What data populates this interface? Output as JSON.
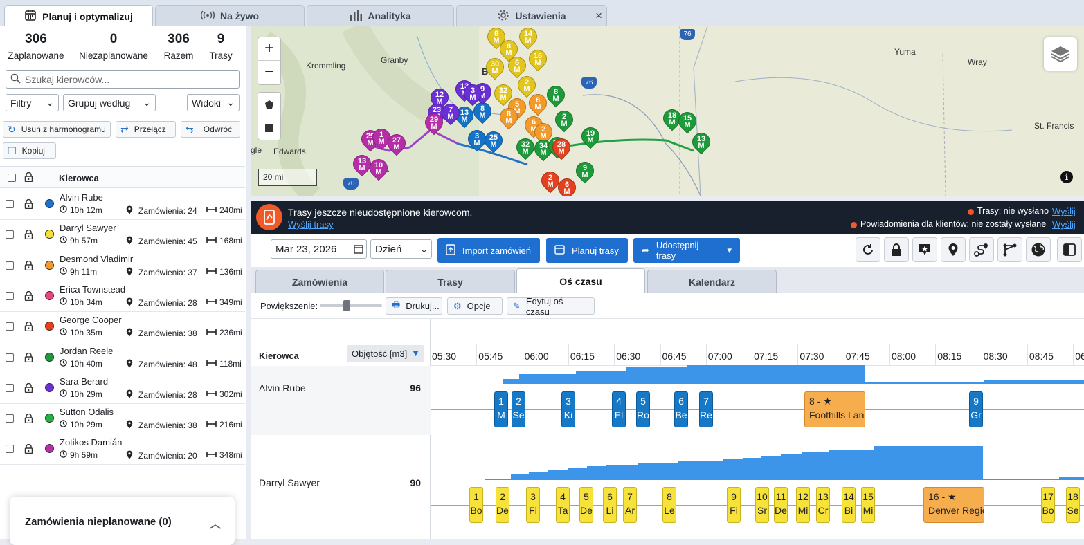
{
  "tabs": [
    {
      "label": "Planuj i optymalizuj",
      "icon": "calendar-icon"
    },
    {
      "label": "Na żywo",
      "icon": "broadcast-icon"
    },
    {
      "label": "Analityka",
      "icon": "bar-chart-icon"
    },
    {
      "label": "Ustawienia",
      "icon": "gear-icon"
    }
  ],
  "tabs_close": "×",
  "stats": [
    {
      "value": "306",
      "label": "Zaplanowane"
    },
    {
      "value": "0",
      "label": "Niezaplanowane"
    },
    {
      "value": "306",
      "label": "Razem"
    },
    {
      "value": "9",
      "label": "Trasy"
    }
  ],
  "search": {
    "placeholder": "Szukaj kierowców..."
  },
  "filters": {
    "filter": "Filtry",
    "group": "Grupuj według",
    "views": "Widoki"
  },
  "actions": {
    "remove": "Usuń z harmonogramu",
    "switch": "Przełącz",
    "reverse": "Odwróć",
    "copy": "Kopiuj"
  },
  "driver_header": "Kierowca",
  "drivers": [
    {
      "name": "Alvin Rube",
      "time": "10h 12m",
      "orders": "Zamówienia: 24",
      "dist": "240mi",
      "color": "#1f6fd0"
    },
    {
      "name": "Darryl Sawyer",
      "time": "9h 57m",
      "orders": "Zamówienia: 45",
      "dist": "168mi",
      "color": "#f4e03a"
    },
    {
      "name": "Desmond Vladimir",
      "time": "9h 11m",
      "orders": "Zamówienia: 37",
      "dist": "136mi",
      "color": "#f39a2c"
    },
    {
      "name": "Erica Townstead",
      "time": "10h 34m",
      "orders": "Zamówienia: 28",
      "dist": "349mi",
      "color": "#e8477d"
    },
    {
      "name": "George Cooper",
      "time": "10h 35m",
      "orders": "Zamówienia: 38",
      "dist": "236mi",
      "color": "#e3411f"
    },
    {
      "name": "Jordan Reele",
      "time": "10h 40m",
      "orders": "Zamówienia: 48",
      "dist": "118mi",
      "color": "#1b9a3a"
    },
    {
      "name": "Sara Berard",
      "time": "10h 29m",
      "orders": "Zamówienia: 28",
      "dist": "302mi",
      "color": "#6b2fd6"
    },
    {
      "name": "Sutton Odalis",
      "time": "10h 29m",
      "orders": "Zamówienia: 38",
      "dist": "216mi",
      "color": "#27b144"
    },
    {
      "name": "Zotikos Damián",
      "time": "9h 59m",
      "orders": "Zamówienia: 20",
      "dist": "348mi",
      "color": "#b52ea7"
    }
  ],
  "unplanned": {
    "label": "Zamówienia nieplanowane (0)"
  },
  "map": {
    "zoom_in": "+",
    "zoom_out": "−",
    "scale": "20 mi",
    "places": [
      "Kremmling",
      "Granby",
      "Edwards",
      "Yuma",
      "Wray",
      "St. Francis",
      "gle",
      "Bo"
    ],
    "highways": [
      "76",
      "76",
      "70"
    ]
  },
  "banner": {
    "message": "Trasy jeszcze nieudostępnione kierowcom.",
    "send_link": "Wyślij trasy",
    "status1": "Trasy: nie wysłano",
    "status2": "Powiadomienia dla klientów: nie zostały wysłane",
    "action": "Wyślij"
  },
  "toolbar": {
    "date": "Mar 23, 2026",
    "view": "Dzień",
    "import": "Import zamówień",
    "plan": "Planuj trasy",
    "share": "Udostępnij trasy"
  },
  "subtabs": [
    "Zamówienia",
    "Trasy",
    "Oś czasu",
    "Kalendarz"
  ],
  "options": {
    "zoom_label": "Powiększenie:",
    "zoom_level": 0.42,
    "print": "Drukuj...",
    "options": "Opcje",
    "edit": "Edytuj oś czasu"
  },
  "timeline": {
    "driver_col": "Kierowca",
    "metric": "Objętość [m3]",
    "times": [
      "05:30",
      "05:45",
      "06:00",
      "06:15",
      "06:30",
      "06:45",
      "07:00",
      "07:15",
      "07:30",
      "07:45",
      "08:00",
      "08:15",
      "08:30",
      "08:45",
      "06"
    ],
    "rows": [
      {
        "driver": "Alvin Rube",
        "value": "96",
        "stops": [
          {
            "num": "1",
            "text": "M",
            "color": "blue"
          },
          {
            "num": "2",
            "text": "Se",
            "color": "blue"
          },
          {
            "num": "3",
            "text": "Ki",
            "color": "blue"
          },
          {
            "num": "4",
            "text": "El",
            "color": "blue"
          },
          {
            "num": "5",
            "text": "Ro",
            "color": "blue"
          },
          {
            "num": "6",
            "text": "Be",
            "color": "blue"
          },
          {
            "num": "7",
            "text": "Re",
            "color": "blue"
          },
          {
            "num": "8 - ★",
            "text": "Foothills Lan",
            "color": "ora"
          },
          {
            "num": "9",
            "text": "Gr",
            "color": "blue"
          }
        ]
      },
      {
        "driver": "Darryl Sawyer",
        "value": "90",
        "stops": [
          {
            "num": "1",
            "text": "Bo",
            "color": "yel"
          },
          {
            "num": "2",
            "text": "De",
            "color": "yel"
          },
          {
            "num": "3",
            "text": "Fi",
            "color": "yel"
          },
          {
            "num": "4",
            "text": "Ta",
            "color": "yel"
          },
          {
            "num": "5",
            "text": "De",
            "color": "yel"
          },
          {
            "num": "6",
            "text": "Li",
            "color": "yel"
          },
          {
            "num": "7",
            "text": "Ar",
            "color": "yel"
          },
          {
            "num": "8",
            "text": "Le",
            "color": "yel"
          },
          {
            "num": "9",
            "text": "Fi",
            "color": "yel"
          },
          {
            "num": "10",
            "text": "Sr",
            "color": "yel"
          },
          {
            "num": "11",
            "text": "De",
            "color": "yel"
          },
          {
            "num": "12",
            "text": "Mi",
            "color": "yel"
          },
          {
            "num": "13",
            "text": "Cr",
            "color": "yel"
          },
          {
            "num": "14",
            "text": "Bi",
            "color": "yel"
          },
          {
            "num": "15",
            "text": "Mi",
            "color": "yel"
          },
          {
            "num": "16 - ★",
            "text": "Denver Regic",
            "color": "ora"
          },
          {
            "num": "17",
            "text": "Bo",
            "color": "yel"
          },
          {
            "num": "18",
            "text": "Se",
            "color": "yel"
          }
        ]
      }
    ]
  }
}
